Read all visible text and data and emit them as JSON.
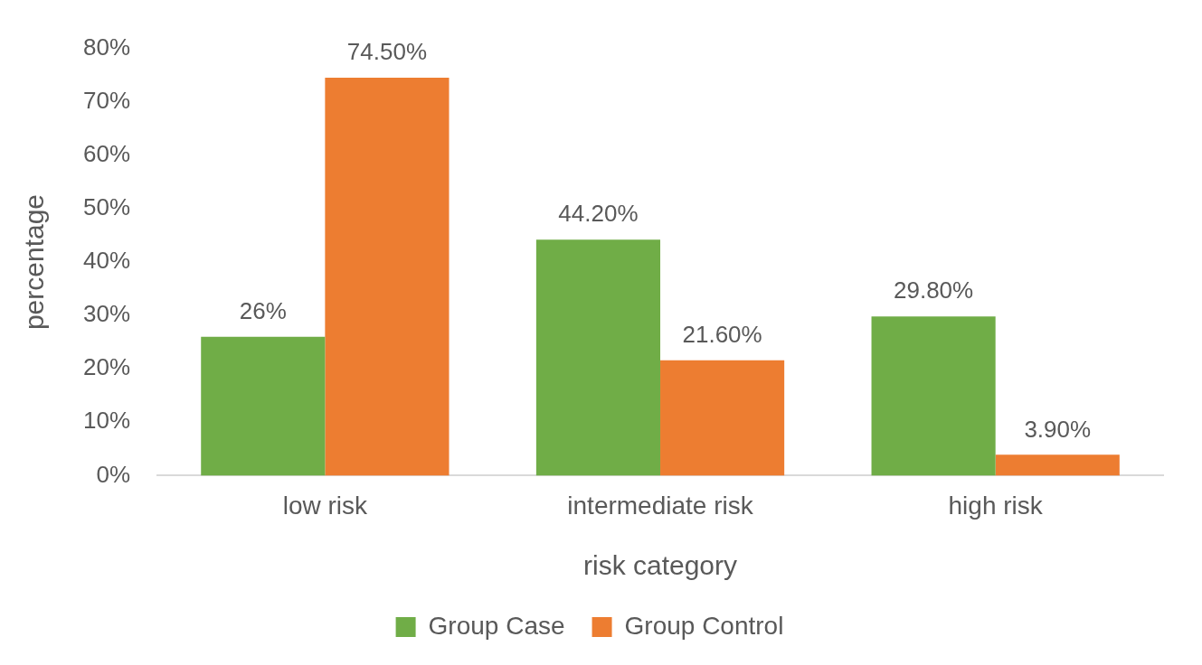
{
  "chart_data": {
    "type": "bar",
    "xlabel": "risk category",
    "ylabel": "percentage",
    "categories": [
      "low risk",
      "intermediate risk",
      "high risk"
    ],
    "series": [
      {
        "name": "Group Case",
        "color": "#70ad47",
        "values": [
          26,
          44.2,
          29.8
        ],
        "value_labels": [
          "26%",
          "44.20%",
          "29.80%"
        ]
      },
      {
        "name": "Group Control",
        "color": "#ed7d31",
        "values": [
          74.5,
          21.6,
          3.9
        ],
        "value_labels": [
          "74.50%",
          "21.60%",
          "3.90%"
        ]
      }
    ],
    "ylim": [
      0,
      80
    ],
    "yticks": [
      {
        "value": 0,
        "label": "0%"
      },
      {
        "value": 10,
        "label": "10%"
      },
      {
        "value": 20,
        "label": "20%"
      },
      {
        "value": 30,
        "label": "30%"
      },
      {
        "value": 40,
        "label": "40%"
      },
      {
        "value": 50,
        "label": "50%"
      },
      {
        "value": 60,
        "label": "60%"
      },
      {
        "value": 70,
        "label": "70%"
      },
      {
        "value": 80,
        "label": "80%"
      }
    ],
    "grid": false,
    "legend": "bottom"
  }
}
